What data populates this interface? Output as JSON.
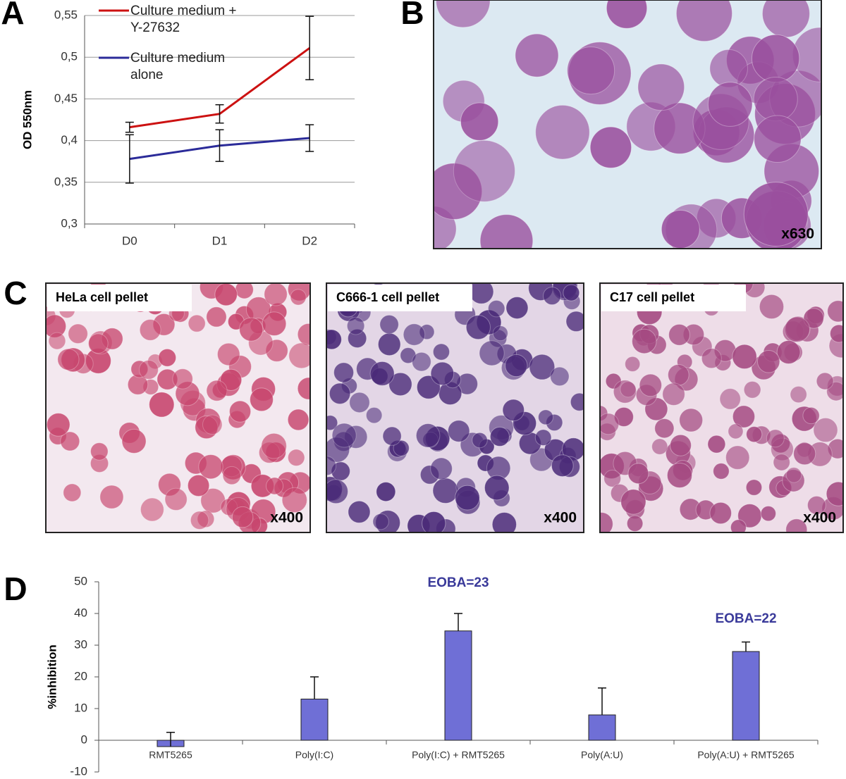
{
  "panel_labels": [
    "A",
    "B",
    "C",
    "D"
  ],
  "micrographs": [
    {
      "magnification": "x630"
    },
    {
      "caption": "HeLa cell pellet",
      "magnification": "x400"
    },
    {
      "caption": "C666-1 cell pellet",
      "magnification": "x400"
    },
    {
      "caption": "C17 cell pellet",
      "magnification": "x400"
    }
  ],
  "chart_data": [
    {
      "type": "line",
      "y_label": "OD 550nm",
      "categories": [
        "D0",
        "D1",
        "D2"
      ],
      "series": [
        {
          "name": "Culture medium + Y-27632",
          "color": "#cc1111",
          "values": [
            0.416,
            0.432,
            0.511
          ],
          "errors": [
            0.006,
            0.011,
            0.038
          ]
        },
        {
          "name": "Culture medium alone",
          "color": "#2b2b99",
          "values": [
            0.378,
            0.394,
            0.403
          ],
          "errors": [
            0.029,
            0.019,
            0.016
          ]
        }
      ],
      "error_direction": "both",
      "ylim": [
        0.3,
        0.55
      ],
      "yticks": [
        {
          "value": 0.3,
          "label": "0,3"
        },
        {
          "value": 0.35,
          "label": "0,35"
        },
        {
          "value": 0.4,
          "label": "0,4"
        },
        {
          "value": 0.45,
          "label": "0,45"
        },
        {
          "value": 0.5,
          "label": "0,5"
        },
        {
          "value": 0.55,
          "label": "0,55"
        }
      ],
      "grid": true
    },
    {
      "type": "bar",
      "y_label": "%inhibition",
      "categories": [
        "RMT5265",
        "Poly(I:C)",
        "Poly(I:C) + RMT5265",
        "Poly(A:U)",
        "Poly(A:U) + RMT5265"
      ],
      "values": [
        -2,
        13,
        34.5,
        8,
        28
      ],
      "errors": [
        4.5,
        7,
        5.5,
        8.5,
        3
      ],
      "error_direction": "up",
      "color": "#6f6fd6",
      "annotations": [
        {
          "text": "EOBA=23",
          "category": "Poly(I:C) + RMT5265"
        },
        {
          "text": "EOBA=22",
          "category": "Poly(A:U) + RMT5265"
        }
      ],
      "ylim": [
        -10,
        50
      ],
      "yticks": [
        -10,
        0,
        10,
        20,
        30,
        40,
        50
      ],
      "grid": false
    }
  ]
}
